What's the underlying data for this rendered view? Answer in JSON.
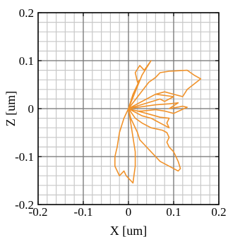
{
  "chart_data": {
    "type": "line",
    "title": "",
    "xlabel": "X [um]",
    "ylabel": "Z [um]",
    "xlim": [
      -0.2,
      0.2
    ],
    "ylim": [
      -0.2,
      0.2
    ],
    "x_ticks": [
      -0.2,
      -0.1,
      0,
      0.1,
      0.2
    ],
    "y_ticks": [
      -0.2,
      -0.1,
      0,
      0.1,
      0.2
    ],
    "x_tick_labels": [
      "-0.2",
      "-0.1",
      "0",
      "0.1",
      "0.2"
    ],
    "y_tick_labels": [
      "-0.2",
      "-0.1",
      "0",
      "0.1",
      "0.2"
    ],
    "minor_step": 0.02,
    "grid": true,
    "series": [
      {
        "color": "#f0922a",
        "points": [
          [
            0,
            0
          ],
          [
            0.03,
            0.07
          ],
          [
            0.05,
            0.1
          ],
          [
            0.035,
            0.08
          ],
          [
            0.025,
            0.09
          ],
          [
            0.015,
            0.075
          ],
          [
            0.02,
            0.055
          ],
          [
            0.025,
            0.06
          ],
          [
            0.01,
            0.03
          ],
          [
            0,
            0
          ],
          [
            0.045,
            0.055
          ],
          [
            0.06,
            0.065
          ],
          [
            0.07,
            0.075
          ],
          [
            0.09,
            0.078
          ],
          [
            0.13,
            0.08
          ],
          [
            0.145,
            0.07
          ],
          [
            0.16,
            0.062
          ],
          [
            0.13,
            0.04
          ],
          [
            0.12,
            0.025
          ],
          [
            0.1,
            0.03
          ],
          [
            0.08,
            0.035
          ],
          [
            0.06,
            0.03
          ],
          [
            0,
            0
          ],
          [
            0.06,
            0.03
          ],
          [
            0.1,
            0.025
          ],
          [
            0.08,
            0.015
          ],
          [
            0.07,
            0.02
          ],
          [
            0,
            0
          ],
          [
            0.06,
            0.008
          ],
          [
            0.09,
            0.01
          ],
          [
            0.11,
            0.012
          ],
          [
            0.09,
            0.0
          ],
          [
            0.12,
            0.005
          ],
          [
            0.13,
            0.003
          ],
          [
            0.1,
            -0.01
          ],
          [
            0.08,
            -0.005
          ],
          [
            0.06,
            -0.002
          ],
          [
            0.03,
            -0.005
          ],
          [
            0.02,
            -0.005
          ],
          [
            0,
            0
          ],
          [
            0.04,
            -0.01
          ],
          [
            0.07,
            -0.018
          ],
          [
            0.09,
            -0.02
          ],
          [
            0.085,
            -0.03
          ],
          [
            0.09,
            -0.04
          ],
          [
            0.08,
            -0.035
          ],
          [
            0.06,
            -0.025
          ],
          [
            0.05,
            -0.02
          ],
          [
            0.03,
            -0.015
          ],
          [
            0,
            0
          ],
          [
            0.015,
            -0.02
          ],
          [
            0.03,
            -0.03
          ],
          [
            0.05,
            -0.04
          ],
          [
            0.075,
            -0.045
          ],
          [
            0.085,
            -0.05
          ],
          [
            0.09,
            -0.06
          ],
          [
            0.085,
            -0.07
          ],
          [
            0.09,
            -0.08
          ],
          [
            0.1,
            -0.09
          ],
          [
            0.11,
            -0.11
          ],
          [
            0.115,
            -0.125
          ],
          [
            0.11,
            -0.13
          ],
          [
            0.09,
            -0.12
          ],
          [
            0.07,
            -0.11
          ],
          [
            0.05,
            -0.09
          ],
          [
            0.035,
            -0.075
          ],
          [
            0.025,
            -0.065
          ],
          [
            0.02,
            -0.05
          ],
          [
            0.01,
            -0.03
          ],
          [
            0.005,
            -0.02
          ],
          [
            0,
            0
          ],
          [
            0.005,
            -0.03
          ],
          [
            0.01,
            -0.06
          ],
          [
            0.015,
            -0.09
          ],
          [
            0.015,
            -0.12
          ],
          [
            0.012,
            -0.14
          ],
          [
            0.01,
            -0.155
          ],
          [
            0.005,
            -0.15
          ],
          [
            -0.005,
            -0.14
          ],
          [
            -0.01,
            -0.13
          ],
          [
            -0.02,
            -0.14
          ],
          [
            -0.025,
            -0.13
          ],
          [
            -0.03,
            -0.12
          ],
          [
            -0.03,
            -0.1
          ],
          [
            -0.025,
            -0.08
          ],
          [
            -0.02,
            -0.05
          ],
          [
            -0.01,
            -0.02
          ],
          [
            0,
            0
          ]
        ]
      }
    ]
  }
}
